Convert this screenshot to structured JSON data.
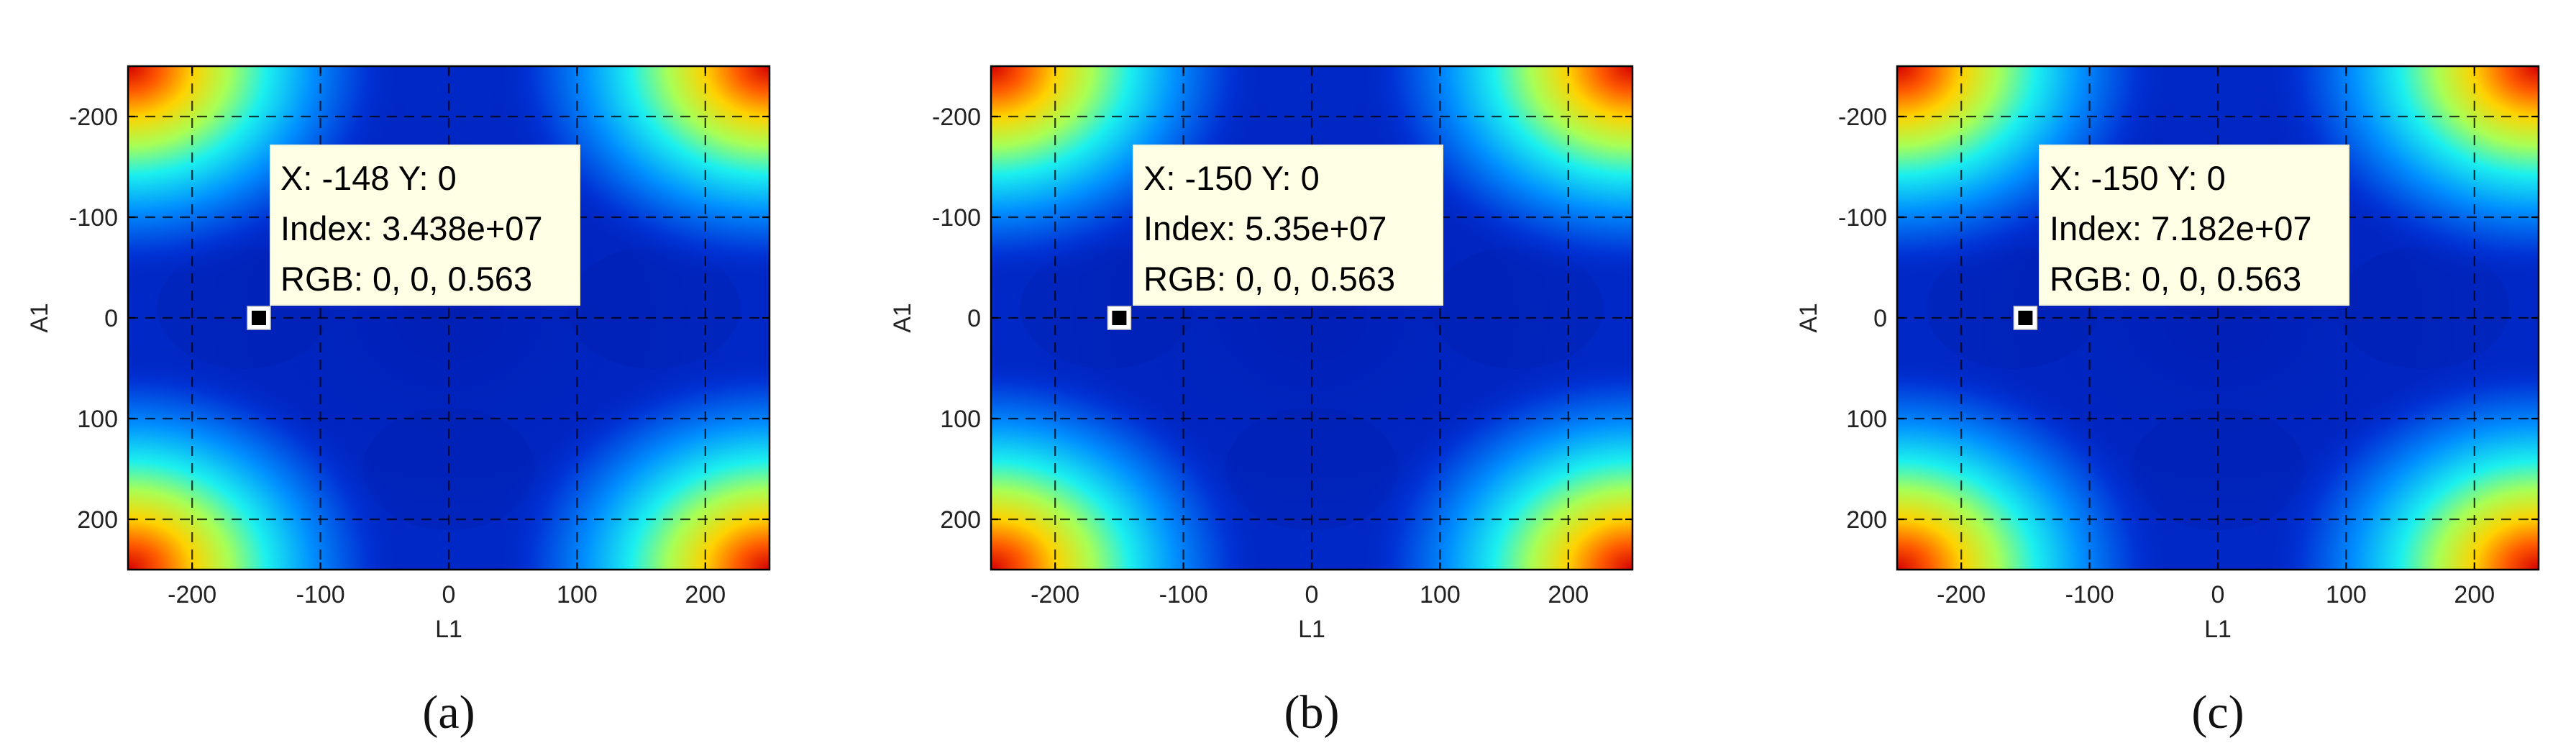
{
  "chart_data": [
    {
      "type": "heatmap",
      "panel_label": "(a)",
      "xlabel": "L1",
      "ylabel": "A1",
      "xlim": [
        -250,
        250
      ],
      "ylim": [
        -250,
        250
      ],
      "y_reversed": true,
      "x_ticks": [
        -200,
        -100,
        0,
        100,
        200
      ],
      "y_ticks": [
        -200,
        -100,
        0,
        100,
        200
      ],
      "x_tick_labels": [
        "-200",
        "-100",
        "0",
        "100",
        "200"
      ],
      "y_tick_labels": [
        "-200",
        "-100",
        "0",
        "100",
        "200"
      ],
      "grid": true,
      "colormap": "jet",
      "datatip": {
        "point": [
          -148,
          0
        ],
        "line1": "X: -148 Y: 0",
        "line2": "Index: 3.438e+07",
        "line3": "RGB: 0, 0, 0.563"
      }
    },
    {
      "type": "heatmap",
      "panel_label": "(b)",
      "xlabel": "L1",
      "ylabel": "A1",
      "xlim": [
        -250,
        250
      ],
      "ylim": [
        -250,
        250
      ],
      "y_reversed": true,
      "x_ticks": [
        -200,
        -100,
        0,
        100,
        200
      ],
      "y_ticks": [
        -200,
        -100,
        0,
        100,
        200
      ],
      "x_tick_labels": [
        "-200",
        "-100",
        "0",
        "100",
        "200"
      ],
      "y_tick_labels": [
        "-200",
        "-100",
        "0",
        "100",
        "200"
      ],
      "grid": true,
      "colormap": "jet",
      "datatip": {
        "point": [
          -150,
          0
        ],
        "line1": "X: -150 Y: 0",
        "line2": "Index: 5.35e+07",
        "line3": "RGB: 0, 0, 0.563"
      }
    },
    {
      "type": "heatmap",
      "panel_label": "(c)",
      "xlabel": "L1",
      "ylabel": "A1",
      "xlim": [
        -250,
        250
      ],
      "ylim": [
        -250,
        250
      ],
      "y_reversed": true,
      "x_ticks": [
        -200,
        -100,
        0,
        100,
        200
      ],
      "y_ticks": [
        -200,
        -100,
        0,
        100,
        200
      ],
      "x_tick_labels": [
        "-200",
        "-100",
        "0",
        "100",
        "200"
      ],
      "y_tick_labels": [
        "-200",
        "-100",
        "0",
        "100",
        "200"
      ],
      "grid": true,
      "colormap": "jet",
      "datatip": {
        "point": [
          -150,
          0
        ],
        "line1": "X: -150 Y: 0",
        "line2": "Index: 7.182e+07",
        "line3": "RGB: 0, 0, 0.563"
      }
    }
  ],
  "colors": {
    "background": "#ffffff",
    "datatip_fill": "#ffffe6",
    "marker": "#000000",
    "grid": "#000000"
  }
}
